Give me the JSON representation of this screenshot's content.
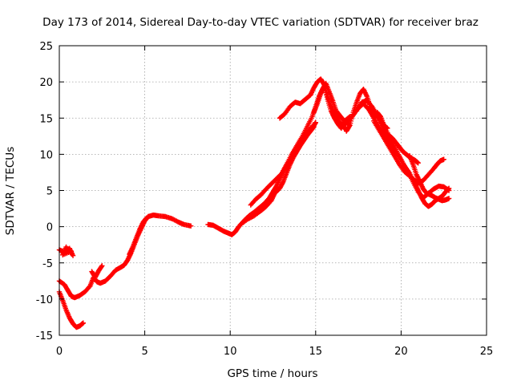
{
  "chart_data": {
    "type": "scatter",
    "title": "Day 173 of 2014, Sidereal Day-to-day VTEC variation (SDTVAR) for receiver braz",
    "xlabel": "GPS time / hours",
    "ylabel": "SDTVAR / TECUs",
    "xlim": [
      0,
      25
    ],
    "ylim": [
      -15,
      25
    ],
    "xticks": [
      0,
      5,
      10,
      15,
      20,
      25
    ],
    "yticks": [
      -15,
      -10,
      -5,
      0,
      5,
      10,
      15,
      20,
      25
    ],
    "grid": true,
    "marker": "+",
    "color": "#ff0000",
    "series": [
      {
        "segments": [
          [
            [
              0.0,
              -3.2
            ],
            [
              0.3,
              -3.5
            ],
            [
              0.6,
              -3.0
            ],
            [
              0.8,
              -4.0
            ],
            [
              0.4,
              -2.8
            ],
            [
              0.2,
              -3.9
            ],
            [
              0.7,
              -3.4
            ]
          ],
          [
            [
              0.0,
              -7.5
            ],
            [
              0.3,
              -8.0
            ],
            [
              0.5,
              -8.8
            ],
            [
              0.7,
              -9.6
            ],
            [
              0.9,
              -9.8
            ],
            [
              1.2,
              -9.5
            ],
            [
              1.5,
              -9.0
            ],
            [
              1.8,
              -8.2
            ],
            [
              2.0,
              -7.0
            ],
            [
              2.2,
              -7.6
            ],
            [
              2.4,
              -7.8
            ],
            [
              2.7,
              -7.5
            ],
            [
              3.0,
              -6.8
            ],
            [
              3.3,
              -6.0
            ],
            [
              3.6,
              -5.6
            ],
            [
              3.8,
              -5.3
            ],
            [
              4.0,
              -4.6
            ],
            [
              4.2,
              -3.6
            ],
            [
              4.4,
              -2.4
            ],
            [
              4.6,
              -1.2
            ],
            [
              4.8,
              -0.2
            ],
            [
              5.0,
              0.8
            ],
            [
              5.2,
              1.4
            ],
            [
              5.5,
              1.6
            ],
            [
              5.8,
              1.5
            ],
            [
              6.2,
              1.4
            ],
            [
              6.6,
              1.1
            ],
            [
              7.0,
              0.6
            ],
            [
              7.3,
              0.3
            ],
            [
              7.7,
              0.1
            ]
          ],
          [
            [
              0.0,
              -9.0
            ],
            [
              0.2,
              -10.2
            ],
            [
              0.4,
              -11.5
            ],
            [
              0.6,
              -12.6
            ],
            [
              0.8,
              -13.4
            ],
            [
              1.0,
              -13.9
            ],
            [
              1.2,
              -13.7
            ],
            [
              1.4,
              -13.3
            ]
          ],
          [
            [
              1.9,
              -6.2
            ],
            [
              2.1,
              -7.0
            ],
            [
              2.3,
              -6.1
            ],
            [
              2.5,
              -5.4
            ]
          ],
          [
            [
              4.1,
              -3.8
            ],
            [
              4.3,
              -2.8
            ],
            [
              4.5,
              -1.6
            ],
            [
              4.7,
              -0.4
            ],
            [
              4.9,
              0.6
            ],
            [
              5.1,
              1.2
            ]
          ],
          [
            [
              8.7,
              0.3
            ],
            [
              9.0,
              0.2
            ],
            [
              9.3,
              -0.2
            ],
            [
              9.6,
              -0.6
            ],
            [
              9.9,
              -0.9
            ],
            [
              10.1,
              -1.1
            ],
            [
              10.3,
              -0.7
            ],
            [
              10.5,
              0.0
            ],
            [
              10.8,
              0.8
            ],
            [
              11.1,
              1.5
            ],
            [
              11.4,
              2.0
            ],
            [
              11.7,
              2.6
            ],
            [
              12.0,
              3.2
            ],
            [
              12.3,
              4.0
            ],
            [
              12.5,
              4.8
            ],
            [
              12.7,
              5.6
            ],
            [
              12.9,
              6.6
            ],
            [
              13.1,
              7.6
            ],
            [
              13.3,
              8.5
            ],
            [
              13.5,
              9.2
            ],
            [
              13.7,
              10.0
            ],
            [
              13.9,
              10.8
            ],
            [
              14.1,
              11.5
            ],
            [
              14.3,
              12.2
            ],
            [
              14.5,
              12.9
            ],
            [
              14.7,
              13.6
            ],
            [
              14.9,
              14.0
            ],
            [
              15.0,
              14.4
            ]
          ],
          [
            [
              10.6,
              0.3
            ],
            [
              11.0,
              1.0
            ],
            [
              11.4,
              1.5
            ],
            [
              11.8,
              2.2
            ],
            [
              12.1,
              2.8
            ],
            [
              12.4,
              3.6
            ],
            [
              12.6,
              4.6
            ],
            [
              12.9,
              5.3
            ],
            [
              13.1,
              6.2
            ],
            [
              13.3,
              7.4
            ],
            [
              13.5,
              8.6
            ],
            [
              13.7,
              9.6
            ],
            [
              13.9,
              10.4
            ],
            [
              14.1,
              11.2
            ],
            [
              14.3,
              11.9
            ],
            [
              14.5,
              12.6
            ],
            [
              14.7,
              13.2
            ],
            [
              14.9,
              13.8
            ]
          ],
          [
            [
              11.2,
              3.0
            ],
            [
              11.5,
              3.8
            ],
            [
              11.8,
              4.4
            ],
            [
              12.1,
              5.2
            ],
            [
              12.4,
              5.9
            ],
            [
              12.7,
              6.6
            ],
            [
              13.0,
              7.3
            ],
            [
              13.3,
              8.6
            ],
            [
              13.6,
              10.0
            ],
            [
              13.9,
              11.2
            ],
            [
              14.2,
              12.4
            ],
            [
              14.5,
              13.8
            ],
            [
              14.8,
              15.2
            ],
            [
              15.0,
              16.6
            ],
            [
              15.2,
              18.0
            ],
            [
              15.4,
              19.0
            ],
            [
              15.6,
              19.8
            ],
            [
              15.8,
              18.6
            ],
            [
              16.0,
              17.4
            ],
            [
              16.2,
              16.0
            ],
            [
              16.4,
              15.4
            ],
            [
              16.6,
              14.8
            ],
            [
              16.8,
              14.4
            ],
            [
              17.0,
              14.0
            ]
          ],
          [
            [
              12.9,
              15.0
            ],
            [
              13.2,
              15.6
            ],
            [
              13.5,
              16.6
            ],
            [
              13.8,
              17.2
            ],
            [
              14.1,
              17.0
            ],
            [
              14.4,
              17.6
            ],
            [
              14.7,
              18.2
            ],
            [
              14.9,
              19.2
            ],
            [
              15.1,
              20.0
            ],
            [
              15.3,
              20.4
            ],
            [
              15.5,
              19.6
            ],
            [
              15.7,
              18.0
            ],
            [
              15.9,
              16.6
            ],
            [
              16.1,
              15.6
            ],
            [
              16.3,
              14.8
            ],
            [
              16.6,
              13.9
            ],
            [
              16.8,
              13.3
            ]
          ],
          [
            [
              14.9,
              15.8
            ],
            [
              15.1,
              17.0
            ],
            [
              15.3,
              18.4
            ],
            [
              15.5,
              19.4
            ],
            [
              15.7,
              17.6
            ],
            [
              15.9,
              16.0
            ],
            [
              16.1,
              15.0
            ],
            [
              16.3,
              14.2
            ],
            [
              16.5,
              13.6
            ],
            [
              16.7,
              14.6
            ],
            [
              17.0,
              15.2
            ]
          ],
          [
            [
              16.8,
              13.2
            ],
            [
              17.0,
              14.0
            ],
            [
              17.2,
              15.8
            ],
            [
              17.4,
              17.2
            ],
            [
              17.6,
              18.4
            ],
            [
              17.8,
              19.0
            ],
            [
              18.0,
              18.0
            ],
            [
              18.2,
              16.6
            ],
            [
              18.4,
              15.6
            ],
            [
              18.6,
              15.2
            ],
            [
              18.9,
              14.0
            ],
            [
              19.1,
              13.0
            ],
            [
              19.3,
              12.6
            ],
            [
              19.5,
              12.2
            ],
            [
              19.7,
              11.6
            ],
            [
              19.9,
              11.0
            ],
            [
              20.1,
              10.4
            ],
            [
              20.3,
              10.0
            ],
            [
              20.5,
              9.6
            ],
            [
              20.8,
              9.2
            ],
            [
              21.0,
              8.8
            ]
          ],
          [
            [
              16.6,
              13.8
            ],
            [
              16.9,
              14.6
            ],
            [
              17.2,
              15.4
            ],
            [
              17.5,
              16.4
            ],
            [
              17.8,
              17.0
            ],
            [
              18.1,
              16.2
            ],
            [
              18.4,
              15.0
            ],
            [
              18.7,
              13.8
            ],
            [
              19.0,
              12.8
            ],
            [
              19.3,
              11.8
            ],
            [
              19.6,
              10.6
            ],
            [
              19.9,
              9.6
            ],
            [
              20.2,
              8.4
            ],
            [
              20.5,
              7.4
            ],
            [
              20.8,
              6.0
            ],
            [
              21.0,
              5.0
            ],
            [
              21.2,
              4.0
            ],
            [
              21.4,
              3.2
            ],
            [
              21.6,
              2.8
            ],
            [
              21.8,
              3.1
            ],
            [
              22.0,
              3.6
            ],
            [
              22.2,
              3.9
            ],
            [
              22.4,
              4.2
            ],
            [
              22.6,
              4.8
            ],
            [
              22.8,
              5.3
            ]
          ],
          [
            [
              17.4,
              16.0
            ],
            [
              17.7,
              17.2
            ],
            [
              18.0,
              17.4
            ],
            [
              18.3,
              16.6
            ],
            [
              18.6,
              15.4
            ],
            [
              18.9,
              14.4
            ],
            [
              19.2,
              13.0
            ],
            [
              19.5,
              11.6
            ],
            [
              19.8,
              10.2
            ],
            [
              20.1,
              8.8
            ],
            [
              20.4,
              7.6
            ],
            [
              20.7,
              6.2
            ],
            [
              21.0,
              4.8
            ],
            [
              21.3,
              4.0
            ],
            [
              21.6,
              4.6
            ],
            [
              21.9,
              5.2
            ],
            [
              22.2,
              5.6
            ],
            [
              22.5,
              5.5
            ],
            [
              22.8,
              5.0
            ]
          ],
          [
            [
              18.4,
              14.6
            ],
            [
              18.7,
              13.4
            ],
            [
              19.0,
              12.2
            ],
            [
              19.3,
              11.0
            ],
            [
              19.6,
              9.8
            ],
            [
              19.9,
              8.6
            ],
            [
              20.2,
              7.6
            ],
            [
              20.5,
              7.0
            ],
            [
              20.8,
              6.4
            ],
            [
              21.0,
              6.0
            ],
            [
              21.3,
              6.4
            ],
            [
              21.6,
              7.2
            ],
            [
              21.9,
              8.0
            ],
            [
              22.1,
              8.6
            ],
            [
              22.3,
              9.1
            ],
            [
              22.5,
              9.3
            ]
          ],
          [
            [
              20.5,
              9.8
            ],
            [
              20.7,
              8.6
            ],
            [
              20.9,
              7.2
            ],
            [
              21.1,
              6.2
            ],
            [
              21.3,
              5.2
            ],
            [
              21.5,
              4.6
            ],
            [
              21.8,
              4.3
            ],
            [
              22.0,
              4.0
            ],
            [
              22.2,
              3.8
            ],
            [
              22.4,
              3.6
            ],
            [
              22.6,
              3.7
            ],
            [
              22.8,
              3.9
            ]
          ],
          [
            [
              18.6,
              15.8
            ],
            [
              18.8,
              15.2
            ],
            [
              19.0,
              14.0
            ],
            [
              19.2,
              13.6
            ]
          ]
        ]
      }
    ]
  }
}
